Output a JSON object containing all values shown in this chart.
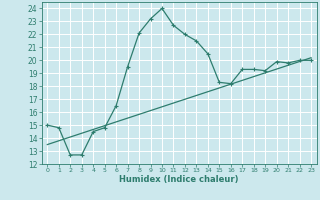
{
  "xlabel": "Humidex (Indice chaleur)",
  "bg_color": "#cce8ed",
  "grid_color": "#ffffff",
  "line_color": "#2e7d6e",
  "xlim": [
    -0.5,
    23.5
  ],
  "ylim": [
    12,
    24.5
  ],
  "yticks": [
    12,
    13,
    14,
    15,
    16,
    17,
    18,
    19,
    20,
    21,
    22,
    23,
    24
  ],
  "xticks": [
    0,
    1,
    2,
    3,
    4,
    5,
    6,
    7,
    8,
    9,
    10,
    11,
    12,
    13,
    14,
    15,
    16,
    17,
    18,
    19,
    20,
    21,
    22,
    23
  ],
  "line1_x": [
    0,
    1,
    2,
    3,
    4,
    5,
    6,
    7,
    8,
    9,
    10,
    11,
    12,
    13,
    14,
    15,
    16,
    17,
    18,
    19,
    20,
    21,
    22,
    23
  ],
  "line1_y": [
    15.0,
    14.8,
    12.7,
    12.7,
    14.5,
    14.8,
    16.5,
    19.5,
    22.1,
    23.2,
    24.0,
    22.7,
    22.0,
    21.5,
    20.5,
    18.3,
    18.2,
    19.3,
    19.3,
    19.2,
    19.9,
    19.8,
    20.0,
    20.0
  ],
  "line2_x": [
    0,
    23
  ],
  "line2_y": [
    13.5,
    20.2
  ]
}
